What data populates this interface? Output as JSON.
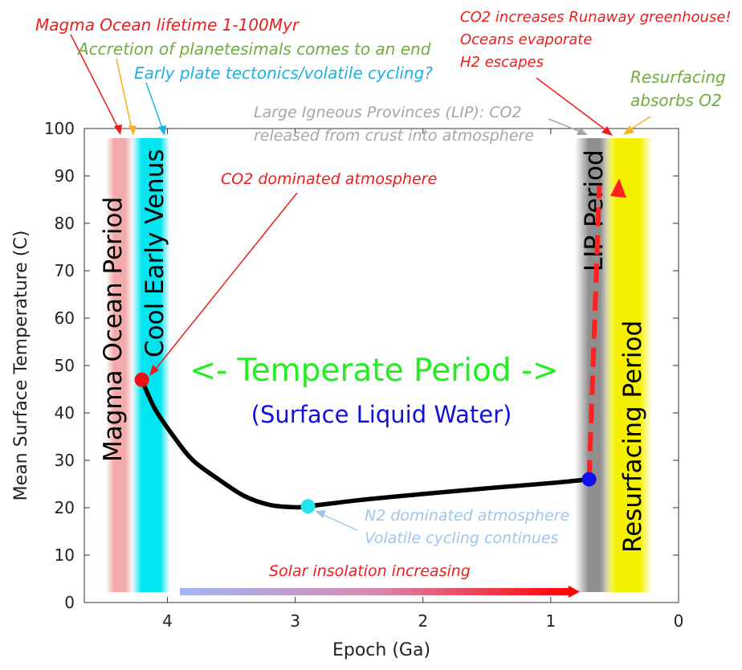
{
  "chart_data": {
    "type": "line",
    "xlabel": "Epoch (Ga)",
    "ylabel": "Mean Surface Temperature (C)",
    "xlim": [
      4.65,
      0
    ],
    "ylim": [
      0,
      100
    ],
    "x_ticks": [
      4,
      3,
      2,
      1,
      0
    ],
    "y_ticks": [
      0,
      10,
      20,
      30,
      40,
      50,
      60,
      70,
      80,
      90,
      100
    ],
    "grid": false,
    "series": [
      {
        "color": "#000000",
        "style": "solid",
        "points": [
          [
            4.2,
            47
          ],
          [
            4.1,
            41
          ],
          [
            3.95,
            35
          ],
          [
            3.8,
            30
          ],
          [
            3.6,
            26
          ],
          [
            3.4,
            22.5
          ],
          [
            3.2,
            20.6
          ],
          [
            3.0,
            20.1
          ],
          [
            2.9,
            20.3
          ],
          [
            2.5,
            21.6
          ],
          [
            2.0,
            22.9
          ],
          [
            1.5,
            24.1
          ],
          [
            1.0,
            25.2
          ],
          [
            0.7,
            26
          ]
        ]
      },
      {
        "color": "#ff2020",
        "style": "dashed",
        "points": [
          [
            0.7,
            26
          ],
          [
            0.62,
            88
          ]
        ]
      }
    ],
    "markers": [
      {
        "x": 4.2,
        "y": 47,
        "color": "#ee1111"
      },
      {
        "x": 2.9,
        "y": 20.3,
        "color": "#22e5ee"
      },
      {
        "x": 0.7,
        "y": 26,
        "color": "#1111ee"
      }
    ],
    "bands": [
      {
        "label": "Magma Ocean Period",
        "x": [
          4.35,
          4.5
        ],
        "color": "#f2aaaa"
      },
      {
        "label": "Cool Early Venus",
        "x": [
          4.05,
          4.25
        ],
        "color": "#00e5f0"
      },
      {
        "label": "LIP Period",
        "x": [
          0.62,
          0.78
        ],
        "color": "#9a9a9a"
      },
      {
        "label": "Resurfacing Period",
        "x": [
          0.25,
          0.55
        ],
        "color": "#f4f000"
      }
    ],
    "center_text": {
      "title": "<- Temperate Period ->",
      "subtitle": "(Surface Liquid Water)"
    },
    "annotations": [
      {
        "text": "Magma Ocean lifetime 1-100Myr",
        "color": "#ee1c1c"
      },
      {
        "text": "Accretion of planetesimals comes to an end",
        "color": "#6fae3e"
      },
      {
        "text": "Early plate tectonics/volatile cycling?",
        "color": "#1ab3e6"
      },
      {
        "text": "CO2 dominated atmosphere",
        "color": "#ee1c1c"
      },
      {
        "text": "Large Igneous Provinces (LIP): CO2",
        "color": "#a6a6a6"
      },
      {
        "text": "released from crust into atmosphere",
        "color": "#a6a6a6"
      },
      {
        "text": "CO2 increases Runaway greenhouse!",
        "color": "#ee1c1c"
      },
      {
        "text": "Oceans evaporate",
        "color": "#ee1c1c"
      },
      {
        "text": "H2 escapes",
        "color": "#ee1c1c"
      },
      {
        "text": "Resurfacing",
        "color": "#6fae3e"
      },
      {
        "text": "absorbs O2",
        "color": "#6fae3e"
      },
      {
        "text": "N2 dominated atmosphere",
        "color": "#9fc5ea"
      },
      {
        "text": "Volatile cycling continues",
        "color": "#9fc5ea"
      },
      {
        "text": "Solar insolation increasing",
        "color": "#ee1c1c"
      }
    ],
    "insolation_arrow": {
      "from_x": 3.9,
      "to_x": 0.8,
      "y": 2.3,
      "from_color": "#a3b6f5",
      "to_color": "#ff0000"
    }
  }
}
